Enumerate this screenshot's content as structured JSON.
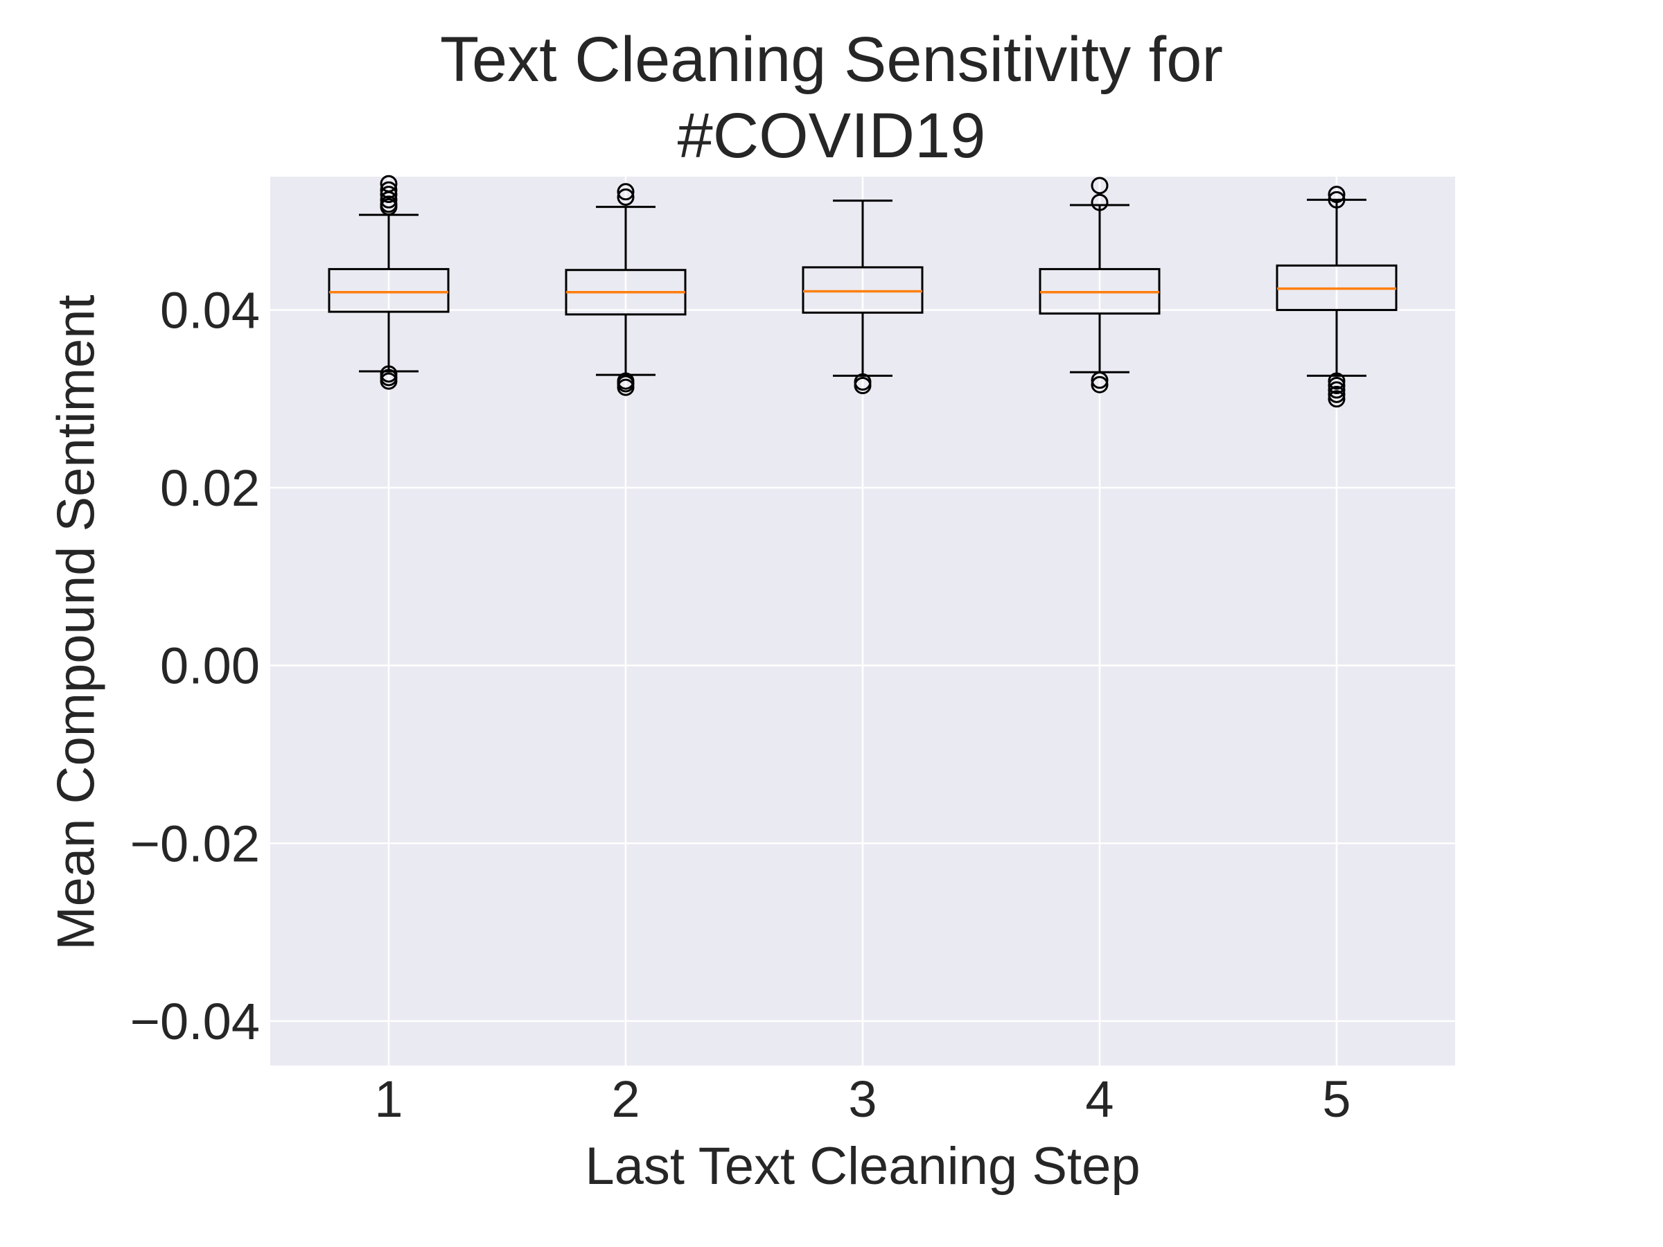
{
  "chart_data": {
    "type": "box",
    "title": [
      "Text Cleaning Sensitivity for",
      "#COVID19"
    ],
    "xlabel": "Last Text Cleaning Step",
    "ylabel": "Mean Compound Sentiment",
    "categories": [
      "1",
      "2",
      "3",
      "4",
      "5"
    ],
    "ylim": [
      -0.045,
      0.055
    ],
    "yticks": [
      -0.04,
      -0.02,
      0.0,
      0.02,
      0.04
    ],
    "ytick_labels": [
      "−0.04",
      "−0.02",
      "0.00",
      "0.02",
      "0.04"
    ],
    "grid": true,
    "boxes": [
      {
        "category": "1",
        "whisker_low": 0.0331,
        "q1": 0.0398,
        "median": 0.042,
        "q3": 0.0446,
        "whisker_high": 0.0507,
        "outliers": [
          0.032,
          0.0324,
          0.0328,
          0.0516,
          0.0519,
          0.0524,
          0.053,
          0.0535,
          0.0542
        ]
      },
      {
        "category": "2",
        "whisker_low": 0.0327,
        "q1": 0.0395,
        "median": 0.042,
        "q3": 0.0445,
        "whisker_high": 0.0516,
        "outliers": [
          0.0313,
          0.0317,
          0.032,
          0.0527,
          0.0533
        ]
      },
      {
        "category": "3",
        "whisker_low": 0.0326,
        "q1": 0.0397,
        "median": 0.0421,
        "q3": 0.0448,
        "whisker_high": 0.0523,
        "outliers": [
          0.0315,
          0.0319
        ]
      },
      {
        "category": "4",
        "whisker_low": 0.033,
        "q1": 0.0396,
        "median": 0.042,
        "q3": 0.0446,
        "whisker_high": 0.0518,
        "outliers": [
          0.0316,
          0.0321,
          0.0521,
          0.054
        ]
      },
      {
        "category": "5",
        "whisker_low": 0.0326,
        "q1": 0.04,
        "median": 0.0424,
        "q3": 0.045,
        "whisker_high": 0.0524,
        "outliers": [
          0.03,
          0.0305,
          0.031,
          0.0315,
          0.032,
          0.0524,
          0.053
        ]
      }
    ],
    "colors": {
      "plot_background": "#EAEAF2",
      "grid": "#FFFFFF",
      "box_edge": "#000000",
      "median": "#FF7F0E",
      "text": "#262626"
    }
  }
}
